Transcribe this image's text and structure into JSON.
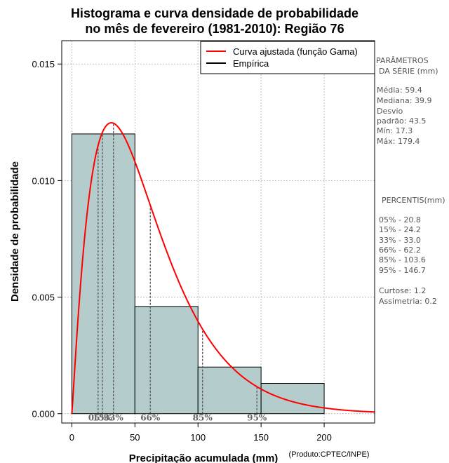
{
  "chart_data": {
    "type": "bar",
    "title_line1": "Histograma e curva densidade de probabilidade",
    "title_line2": "no mês de fevereiro (1981-2010): Região 76",
    "xlabel": "Precipitação acumulada (mm)",
    "ylabel": "Densidade de probabilidade",
    "credit": "(Produto:CPTEC/INPE)",
    "xlim": [
      -8,
      240
    ],
    "ylim": [
      -0.0004,
      0.016
    ],
    "x_ticks": [
      0,
      50,
      100,
      150,
      200
    ],
    "x_tick_labels": [
      "0",
      "50",
      "100",
      "150",
      "200"
    ],
    "y_ticks": [
      0,
      0.005,
      0.01,
      0.015
    ],
    "y_tick_labels": [
      "0.000",
      "0.005",
      "0.010",
      "0.015"
    ],
    "grid": true,
    "histogram": {
      "bins": [
        [
          0,
          50
        ],
        [
          50,
          100
        ],
        [
          100,
          150
        ],
        [
          150,
          200
        ]
      ],
      "density": [
        0.012,
        0.0046,
        0.002,
        0.0013
      ],
      "fill": "#b4cccb",
      "edge": "#000000"
    },
    "gamma_curve": {
      "name": "Curva ajustada (função Gama)",
      "shape": 2.11,
      "scale": 28.2,
      "color": "#ff0000"
    },
    "legend": {
      "position": "top-right",
      "entries": [
        {
          "label": "Curva ajustada (função Gama)",
          "color": "#ff0000"
        },
        {
          "label": "Empírica",
          "color": "#000000"
        }
      ]
    },
    "percentile_markers": [
      {
        "value": 20.8,
        "label": "05%"
      },
      {
        "value": 24.2,
        "label": "15%"
      },
      {
        "value": 33.0,
        "label": "33%"
      },
      {
        "value": 62.2,
        "label": "66%"
      },
      {
        "value": 103.6,
        "label": "85%"
      },
      {
        "value": 146.7,
        "label": "95%"
      }
    ],
    "side_panel": {
      "params_title_1": "PARÂMETROS",
      "params_title_2": "DA SÉRIE (mm)",
      "mean": "Média:  59.4",
      "median": "Mediana:  39.9",
      "std_1": "Desvio",
      "std_2": "padrão:  43.5",
      "min": "Mín:  17.3",
      "max": "Máx:  179.4",
      "pct_title": "PERCENTIS(mm)",
      "p05": "05% -  20.8",
      "p15": "15% -  24.2",
      "p33": "33% -  33.0",
      "p66": "66% -  62.2",
      "p85": "85% -  103.6",
      "p95": "95% -  146.7",
      "kurtosis": "Curtose:  1.2",
      "skewness": "Assimetria:  0.2"
    }
  }
}
